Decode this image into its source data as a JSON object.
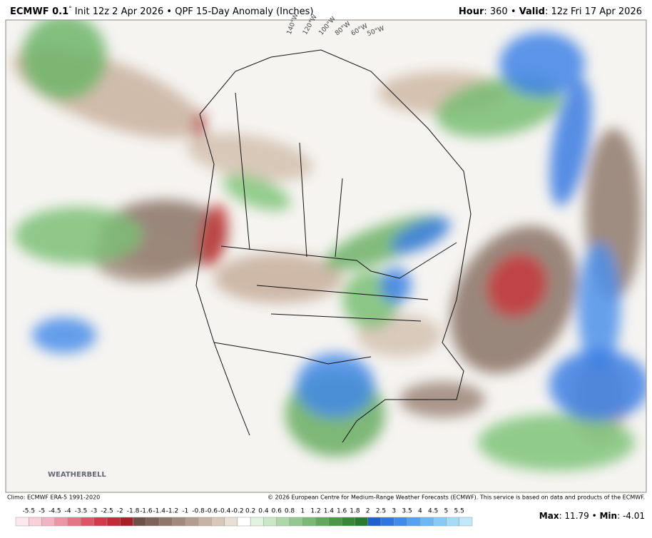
{
  "header": {
    "model": "ECMWF 0.1",
    "degree": "°",
    "description": " Init 12z 2 Apr 2026 • QPF 15-Day Anomaly (Inches)",
    "hour_label": "Hour",
    "hour_text": ": 360 • ",
    "valid_label": "Valid",
    "valid_text": ": 12z Fri 17 Apr 2026"
  },
  "map": {
    "longitude_labels": [
      "140°W",
      "120°W",
      "100°W",
      "80°W",
      "60°W",
      "50°W"
    ],
    "logo": "WEATHERBELL"
  },
  "footer": {
    "climo": "Climo: ECMWF ERA-5 1991-2020",
    "copyright": "© 2026 European Centre for Medium-Range Weather Forecasts (ECMWF). This service is based on data and products of the ECMWF.",
    "max_label": "Max",
    "max_text": ": 11.79 • ",
    "min_label": "Min",
    "min_text": ": -4.01"
  },
  "colorbar": {
    "labels": [
      -5.5,
      -5,
      -4.5,
      -4,
      -3.5,
      -3,
      -2.5,
      -2,
      -1.8,
      -1.6,
      -1.4,
      -1.2,
      -1,
      -0.8,
      -0.6,
      -0.4,
      -0.2,
      0.2,
      0.4,
      0.6,
      0.8,
      1,
      1.2,
      1.4,
      1.6,
      1.8,
      2,
      2.5,
      3,
      3.5,
      4,
      4.5,
      5,
      5.5
    ],
    "colors": [
      "#fde8ec",
      "#f9d0d8",
      "#f3b3c0",
      "#ec95a4",
      "#e47585",
      "#dc5666",
      "#d23a4a",
      "#c22a36",
      "#a82027",
      "#6e5048",
      "#7e6258",
      "#8f7569",
      "#a1897c",
      "#b49d8f",
      "#c7b2a3",
      "#d9c8ba",
      "#eadfd4",
      "#ffffff",
      "#e3f3e1",
      "#c9e9c6",
      "#add8a9",
      "#93c98e",
      "#79b973",
      "#60a95b",
      "#4a9847",
      "#378737",
      "#2a7a2e",
      "#1f5fd0",
      "#2f74e0",
      "#3f8bea",
      "#54a2f0",
      "#6db7f3",
      "#88caf5",
      "#a4dbf7",
      "#c0e9fa"
    ]
  }
}
